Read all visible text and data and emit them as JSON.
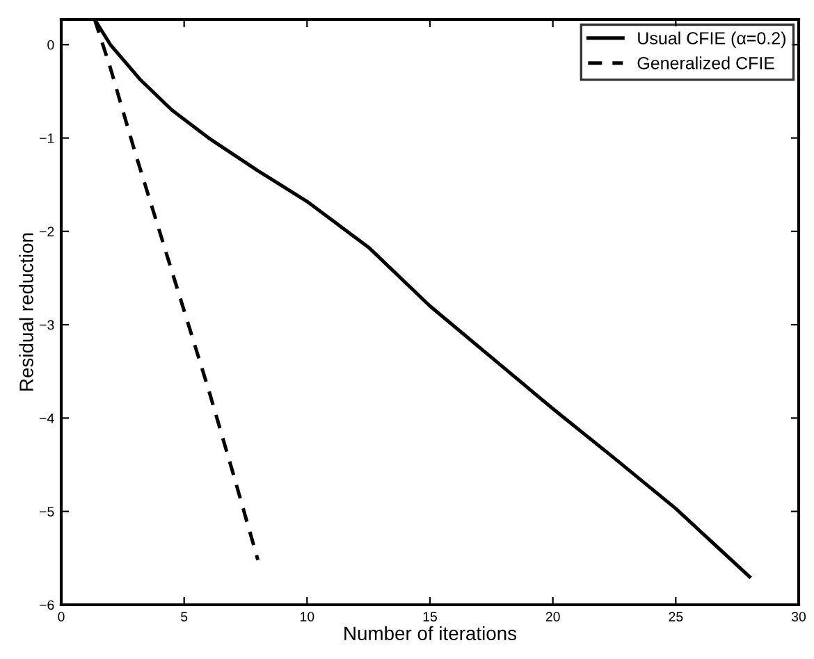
{
  "chart_data": {
    "type": "line",
    "xlabel": "Number of iterations",
    "ylabel": "Residual reduction",
    "xlim": [
      0,
      30
    ],
    "ylim": [
      -6,
      0.27
    ],
    "xticks": [
      0,
      5,
      10,
      15,
      20,
      25,
      30
    ],
    "yticks": [
      {
        "value": -6,
        "label": "−6"
      },
      {
        "value": -5,
        "label": "−5"
      },
      {
        "value": -4,
        "label": "−4"
      },
      {
        "value": -3,
        "label": "−3"
      },
      {
        "value": -2,
        "label": "−2"
      },
      {
        "value": -1,
        "label": "−1"
      },
      0
    ],
    "grid": false,
    "legend": "top right",
    "marker": "none",
    "series": [
      {
        "name": "Usual CFIE (α=0.2)",
        "color": "#000000",
        "line_style": "solid",
        "x": [
          1.36,
          2,
          3.2,
          4.5,
          6,
          8,
          10,
          12.5,
          15,
          17.5,
          20,
          22.5,
          25,
          28
        ],
        "values": [
          0.27,
          0.0,
          -0.37,
          -0.7,
          -1.0,
          -1.35,
          -1.68,
          -2.17,
          -2.8,
          -3.35,
          -3.9,
          -4.43,
          -4.97,
          -5.7
        ]
      },
      {
        "name": "Generalized CFIE",
        "color": "#000000",
        "line_style": "dashed",
        "x": [
          1.36,
          2,
          3,
          4,
          5,
          6,
          7,
          8
        ],
        "values": [
          0.27,
          -0.25,
          -1.15,
          -2.0,
          -2.85,
          -3.7,
          -4.6,
          -5.52
        ]
      }
    ]
  }
}
